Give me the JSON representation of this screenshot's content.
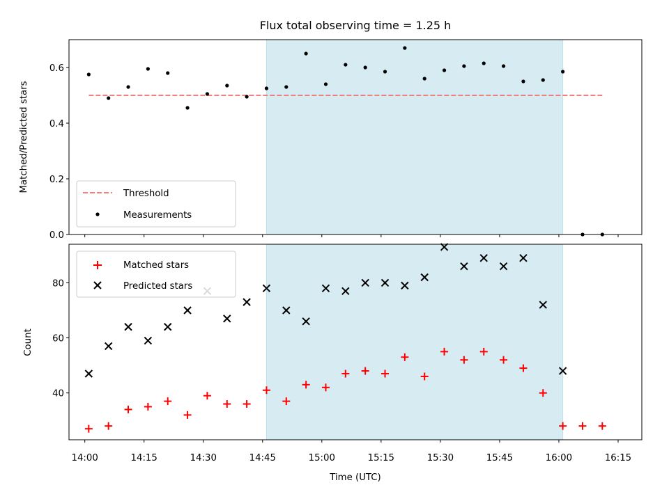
{
  "chart_data": [
    {
      "type": "scatter",
      "title": "Flux total observing time = 1.25 h",
      "xlabel": "",
      "ylabel": "Matched/Predicted stars",
      "ylim": [
        0.0,
        0.7
      ],
      "yticks": [
        0.0,
        0.2,
        0.4,
        0.6
      ],
      "ytick_labels": [
        "0.0",
        "0.2",
        "0.4",
        "0.6"
      ],
      "highlight_span": {
        "x_start": "14:46",
        "x_end": "16:01",
        "color": "#add8e6"
      },
      "legend": {
        "position": "lower-left",
        "entries": [
          {
            "label": "Threshold",
            "marker": "dashed-line",
            "color": "#f08080"
          },
          {
            "label": "Measurements",
            "marker": "dot",
            "color": "#000000"
          }
        ]
      },
      "series": [
        {
          "name": "Threshold",
          "kind": "dashed-line",
          "color": "#f08080",
          "x": [
            "14:01",
            "16:11"
          ],
          "values": [
            0.5,
            0.5
          ]
        },
        {
          "name": "Measurements",
          "kind": "dot",
          "color": "#000000",
          "x": [
            "14:01",
            "14:06",
            "14:11",
            "14:16",
            "14:21",
            "14:26",
            "14:31",
            "14:36",
            "14:41",
            "14:46",
            "14:51",
            "14:56",
            "15:01",
            "15:06",
            "15:11",
            "15:16",
            "15:21",
            "15:26",
            "15:31",
            "15:36",
            "15:41",
            "15:46",
            "15:51",
            "15:56",
            "16:01",
            "16:06",
            "16:11"
          ],
          "values": [
            0.575,
            0.49,
            0.53,
            0.595,
            0.58,
            0.455,
            0.505,
            0.535,
            0.495,
            0.525,
            0.53,
            0.65,
            0.54,
            0.61,
            0.6,
            0.585,
            0.67,
            0.56,
            0.59,
            0.605,
            0.615,
            0.605,
            0.55,
            0.555,
            0.585,
            0.0,
            0.0
          ]
        }
      ]
    },
    {
      "type": "scatter",
      "title": "",
      "xlabel": "Time (UTC)",
      "ylabel": "Count",
      "ylim": [
        23,
        94
      ],
      "yticks": [
        40,
        60,
        80
      ],
      "ytick_labels": [
        "40",
        "60",
        "80"
      ],
      "xticks": [
        "14:00",
        "14:15",
        "14:30",
        "14:45",
        "15:00",
        "15:15",
        "15:30",
        "15:45",
        "16:00",
        "16:15"
      ],
      "highlight_span": {
        "x_start": "14:46",
        "x_end": "16:01",
        "color": "#add8e6"
      },
      "legend": {
        "position": "upper-left",
        "entries": [
          {
            "label": "Matched stars",
            "marker": "plus",
            "color": "#ff0000"
          },
          {
            "label": "Predicted stars",
            "marker": "x",
            "color": "#000000"
          }
        ]
      },
      "series": [
        {
          "name": "Matched stars",
          "kind": "plus",
          "color": "#ff0000",
          "x": [
            "14:01",
            "14:06",
            "14:11",
            "14:16",
            "14:21",
            "14:26",
            "14:31",
            "14:36",
            "14:41",
            "14:46",
            "14:51",
            "14:56",
            "15:01",
            "15:06",
            "15:11",
            "15:16",
            "15:21",
            "15:26",
            "15:31",
            "15:36",
            "15:41",
            "15:46",
            "15:51",
            "15:56",
            "16:01",
            "16:06",
            "16:11"
          ],
          "values": [
            27,
            28,
            34,
            35,
            37,
            32,
            39,
            36,
            36,
            41,
            37,
            43,
            42,
            47,
            48,
            47,
            53,
            46,
            55,
            52,
            55,
            52,
            49,
            40,
            28,
            28,
            28
          ]
        },
        {
          "name": "Predicted stars",
          "kind": "x",
          "color": "#000000",
          "x": [
            "14:01",
            "14:06",
            "14:11",
            "14:16",
            "14:21",
            "14:26",
            "14:31",
            "14:36",
            "14:41",
            "14:46",
            "14:51",
            "14:56",
            "15:01",
            "15:06",
            "15:11",
            "15:16",
            "15:21",
            "15:26",
            "15:31",
            "15:36",
            "15:41",
            "15:46",
            "15:51",
            "15:56",
            "16:01"
          ],
          "values": [
            47,
            57,
            64,
            59,
            64,
            70,
            77,
            67,
            73,
            78,
            70,
            66,
            78,
            77,
            80,
            80,
            79,
            82,
            93,
            86,
            89,
            86,
            89,
            72,
            48
          ]
        }
      ]
    }
  ]
}
